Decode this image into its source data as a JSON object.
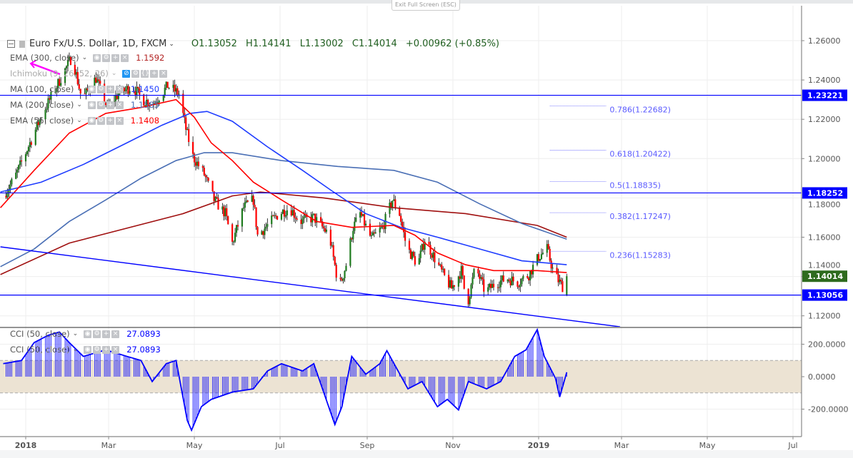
{
  "tooltip": "Exit Full Screen (ESC)",
  "header": {
    "symbol": "Euro Fx/U.S. Dollar, 1D, FXCM",
    "open": "O1.13052",
    "high": "H1.14141",
    "low": "L1.13002",
    "close": "C1.14014",
    "change": "+0.00962 (+0.85%)"
  },
  "indicators": [
    {
      "label": "EMA (300, close)",
      "value": "1.1592",
      "color": "#b22222"
    },
    {
      "label": "Ichimoku (9, 26, 52, 26)",
      "value": "",
      "color": "#999999"
    },
    {
      "label": "MA (100, close)",
      "value": "1.1450",
      "color": "#1e3cff"
    },
    {
      "label": "MA (200, close)",
      "value": "1.1585",
      "color": "#4a6fb5"
    },
    {
      "label": "EMA (55, close)",
      "value": "1.1408",
      "color": "#ff0000"
    }
  ],
  "cci_legend": [
    {
      "label": "CCI (50, close)",
      "value": "27.0893"
    },
    {
      "label": "CCI (50, close)",
      "value": "27.0893"
    }
  ],
  "chart_data": [
    {
      "type": "candlestick",
      "pane": "price",
      "y_ticks": [
        "1.26000",
        "1.24000",
        "1.22000",
        "1.20000",
        "1.18000",
        "1.16000",
        "1.14000",
        "1.12000"
      ],
      "x_ticks": [
        {
          "date": "2018-01-01",
          "label": "2018",
          "bold": true
        },
        {
          "date": "2018-03-01",
          "label": "Mar"
        },
        {
          "date": "2018-05-01",
          "label": "May"
        },
        {
          "date": "2018-07-01",
          "label": "Jul"
        },
        {
          "date": "2018-09-01",
          "label": "Sep"
        },
        {
          "date": "2018-11-01",
          "label": "Nov"
        },
        {
          "date": "2019-01-01",
          "label": "2019",
          "bold": true
        },
        {
          "date": "2019-03-01",
          "label": "Mar"
        },
        {
          "date": "2019-05-01",
          "label": "May"
        },
        {
          "date": "2019-07-01",
          "label": "Jul"
        }
      ],
      "ylim": [
        1.108,
        1.264
      ],
      "colors": {
        "up": "#1e7b1e",
        "down": "#ff0000"
      },
      "last_bar": {
        "open": 1.13052,
        "high": 1.14141,
        "low": 1.13002,
        "close": 1.14014
      },
      "close_path": [
        [
          "2017-12-16",
          1.181
        ],
        [
          "2017-12-24",
          1.19
        ],
        [
          "2018-01-01",
          1.203
        ],
        [
          "2018-01-13",
          1.223
        ],
        [
          "2018-01-26",
          1.241
        ],
        [
          "2018-02-03",
          1.252
        ],
        [
          "2018-02-10",
          1.23
        ],
        [
          "2018-02-20",
          1.241
        ],
        [
          "2018-02-28",
          1.226
        ],
        [
          "2018-03-08",
          1.233
        ],
        [
          "2018-03-18",
          1.237
        ],
        [
          "2018-03-25",
          1.23
        ],
        [
          "2018-04-02",
          1.228
        ],
        [
          "2018-04-12",
          1.237
        ],
        [
          "2018-04-20",
          1.233
        ],
        [
          "2018-04-25",
          1.215
        ],
        [
          "2018-04-30",
          1.201
        ],
        [
          "2018-05-08",
          1.192
        ],
        [
          "2018-05-15",
          1.179
        ],
        [
          "2018-05-23",
          1.172
        ],
        [
          "2018-05-28",
          1.157
        ],
        [
          "2018-06-05",
          1.175
        ],
        [
          "2018-06-12",
          1.179
        ],
        [
          "2018-06-15",
          1.161
        ],
        [
          "2018-06-22",
          1.166
        ],
        [
          "2018-06-30",
          1.172
        ],
        [
          "2018-07-08",
          1.175
        ],
        [
          "2018-07-15",
          1.168
        ],
        [
          "2018-07-25",
          1.17
        ],
        [
          "2018-08-05",
          1.161
        ],
        [
          "2018-08-12",
          1.134
        ],
        [
          "2018-08-17",
          1.146
        ],
        [
          "2018-08-22",
          1.165
        ],
        [
          "2018-08-27",
          1.172
        ],
        [
          "2018-09-04",
          1.159
        ],
        [
          "2018-09-12",
          1.165
        ],
        [
          "2018-09-19",
          1.179
        ],
        [
          "2018-09-24",
          1.172
        ],
        [
          "2018-09-29",
          1.155
        ],
        [
          "2018-10-07",
          1.146
        ],
        [
          "2018-10-12",
          1.159
        ],
        [
          "2018-10-17",
          1.152
        ],
        [
          "2018-10-25",
          1.141
        ],
        [
          "2018-10-31",
          1.134
        ],
        [
          "2018-11-07",
          1.143
        ],
        [
          "2018-11-11",
          1.125
        ],
        [
          "2018-11-17",
          1.145
        ],
        [
          "2018-11-24",
          1.132
        ],
        [
          "2018-12-02",
          1.137
        ],
        [
          "2018-12-10",
          1.139
        ],
        [
          "2018-12-17",
          1.137
        ],
        [
          "2018-12-25",
          1.141
        ],
        [
          "2019-01-01",
          1.15
        ],
        [
          "2019-01-07",
          1.154
        ],
        [
          "2019-01-12",
          1.141
        ],
        [
          "2019-01-19",
          1.134
        ],
        [
          "2019-01-21",
          1.14
        ]
      ],
      "series": [
        {
          "name": "EMA (300, close)",
          "color": "#a01010",
          "points": [
            [
              "2017-12-14",
              1.141
            ],
            [
              "2018-02-01",
              1.157
            ],
            [
              "2018-04-23",
              1.172
            ],
            [
              "2018-05-28",
              1.181
            ],
            [
              "2018-06-17",
              1.183
            ],
            [
              "2018-08-01",
              1.18
            ],
            [
              "2018-09-20",
              1.175
            ],
            [
              "2018-11-10",
              1.172
            ],
            [
              "2018-12-31",
              1.166
            ],
            [
              "2019-01-21",
              1.16
            ]
          ]
        },
        {
          "name": "MA (200, close)",
          "color": "#4a6fb5",
          "points": [
            [
              "2017-12-14",
              1.145
            ],
            [
              "2018-01-07",
              1.154
            ],
            [
              "2018-02-01",
              1.168
            ],
            [
              "2018-02-27",
              1.179
            ],
            [
              "2018-03-24",
              1.19
            ],
            [
              "2018-04-18",
              1.199
            ],
            [
              "2018-05-08",
              1.203
            ],
            [
              "2018-05-28",
              1.203
            ],
            [
              "2018-07-02",
              1.199
            ],
            [
              "2018-08-11",
              1.196
            ],
            [
              "2018-09-20",
              1.194
            ],
            [
              "2018-10-21",
              1.188
            ],
            [
              "2018-11-20",
              1.177
            ],
            [
              "2018-12-20",
              1.167
            ],
            [
              "2019-01-21",
              1.159
            ]
          ]
        },
        {
          "name": "MA (100, close)",
          "color": "#1e3cff",
          "points": [
            [
              "2017-12-14",
              1.183
            ],
            [
              "2018-01-12",
              1.188
            ],
            [
              "2018-02-11",
              1.197
            ],
            [
              "2018-03-14",
              1.208
            ],
            [
              "2018-04-08",
              1.217
            ],
            [
              "2018-04-28",
              1.223
            ],
            [
              "2018-05-10",
              1.224
            ],
            [
              "2018-05-28",
              1.219
            ],
            [
              "2018-06-22",
              1.206
            ],
            [
              "2018-07-17",
              1.194
            ],
            [
              "2018-08-06",
              1.184
            ],
            [
              "2018-08-31",
              1.172
            ],
            [
              "2018-09-25",
              1.165
            ],
            [
              "2018-10-21",
              1.16
            ],
            [
              "2018-11-20",
              1.154
            ],
            [
              "2018-12-20",
              1.148
            ],
            [
              "2019-01-21",
              1.146
            ]
          ]
        },
        {
          "name": "EMA (55, close)",
          "color": "#ff0000",
          "points": [
            [
              "2017-12-14",
              1.175
            ],
            [
              "2018-01-07",
              1.194
            ],
            [
              "2018-02-01",
              1.213
            ],
            [
              "2018-02-27",
              1.223
            ],
            [
              "2018-03-24",
              1.226
            ],
            [
              "2018-04-18",
              1.23
            ],
            [
              "2018-05-01",
              1.221
            ],
            [
              "2018-05-13",
              1.208
            ],
            [
              "2018-05-28",
              1.199
            ],
            [
              "2018-06-12",
              1.188
            ],
            [
              "2018-07-02",
              1.179
            ],
            [
              "2018-07-27",
              1.168
            ],
            [
              "2018-08-21",
              1.165
            ],
            [
              "2018-09-20",
              1.166
            ],
            [
              "2018-10-05",
              1.161
            ],
            [
              "2018-10-21",
              1.152
            ],
            [
              "2018-11-10",
              1.146
            ],
            [
              "2018-11-30",
              1.143
            ],
            [
              "2018-12-20",
              1.143
            ],
            [
              "2018-12-31",
              1.143
            ],
            [
              "2019-01-21",
              1.142
            ]
          ]
        }
      ],
      "horizontal_lines": [
        {
          "price": 1.23221,
          "label": "1.23221",
          "color": "#0000ff"
        },
        {
          "price": 1.18252,
          "label": "1.18252",
          "color": "#0000ff"
        },
        {
          "price": 1.13056,
          "label": "1.13056",
          "color": "#0000ff"
        }
      ],
      "last_price_label": {
        "label": "1.14014",
        "color": "#2e6b1e"
      },
      "trendline": {
        "color": "#0000ff",
        "from": [
          "2017-12-14",
          1.1551
        ],
        "to": [
          "2019-02-28",
          1.1144
        ]
      },
      "fibonacci": {
        "from_date": "2019-01-09",
        "to_date": "2019-02-18",
        "color": "#5a5aff",
        "levels": [
          {
            "price": 1.22682,
            "label": "0.786(1.22682)"
          },
          {
            "price": 1.20422,
            "label": "0.618(1.20422)"
          },
          {
            "price": 1.18835,
            "label": "0.5(1.18835)"
          },
          {
            "price": 1.17247,
            "label": "0.382(1.17247)"
          },
          {
            "price": 1.15283,
            "label": "0.236(1.15283)"
          }
        ]
      },
      "annotation_arrow_color": "#ff00ff"
    },
    {
      "type": "line",
      "pane": "cci",
      "name": "CCI (50, close)",
      "color": "#0000ff",
      "band": {
        "upper": 100,
        "lower": -100,
        "fill": "#ece3d3"
      },
      "y_ticks": [
        {
          "value": 200,
          "label": "200.0000"
        },
        {
          "value": 0,
          "label": "0.0000"
        },
        {
          "value": -200,
          "label": "-200.0000"
        }
      ],
      "ylim": [
        -370,
        300
      ],
      "points": [
        [
          "2017-12-16",
          80
        ],
        [
          "2017-12-29",
          100
        ],
        [
          "2018-01-07",
          210
        ],
        [
          "2018-01-17",
          255
        ],
        [
          "2018-01-25",
          275
        ],
        [
          "2018-02-01",
          210
        ],
        [
          "2018-02-11",
          125
        ],
        [
          "2018-02-27",
          165
        ],
        [
          "2018-03-14",
          125
        ],
        [
          "2018-03-24",
          100
        ],
        [
          "2018-04-01",
          -30
        ],
        [
          "2018-04-11",
          80
        ],
        [
          "2018-04-18",
          100
        ],
        [
          "2018-04-26",
          -270
        ],
        [
          "2018-04-29",
          -330
        ],
        [
          "2018-05-06",
          -185
        ],
        [
          "2018-05-13",
          -140
        ],
        [
          "2018-05-28",
          -95
        ],
        [
          "2018-06-12",
          -75
        ],
        [
          "2018-06-22",
          35
        ],
        [
          "2018-07-02",
          80
        ],
        [
          "2018-07-17",
          35
        ],
        [
          "2018-07-25",
          80
        ],
        [
          "2018-08-01",
          -95
        ],
        [
          "2018-08-09",
          -295
        ],
        [
          "2018-08-14",
          -185
        ],
        [
          "2018-08-21",
          125
        ],
        [
          "2018-08-31",
          15
        ],
        [
          "2018-09-10",
          80
        ],
        [
          "2018-09-15",
          160
        ],
        [
          "2018-09-23",
          35
        ],
        [
          "2018-09-30",
          -75
        ],
        [
          "2018-10-10",
          -30
        ],
        [
          "2018-10-21",
          -185
        ],
        [
          "2018-10-28",
          -140
        ],
        [
          "2018-11-05",
          -205
        ],
        [
          "2018-11-12",
          -30
        ],
        [
          "2018-11-25",
          -75
        ],
        [
          "2018-12-05",
          -30
        ],
        [
          "2018-12-15",
          125
        ],
        [
          "2018-12-23",
          165
        ],
        [
          "2018-12-31",
          290
        ],
        [
          "2019-01-05",
          125
        ],
        [
          "2019-01-13",
          -10
        ],
        [
          "2019-01-16",
          -125
        ],
        [
          "2019-01-21",
          27.0893
        ]
      ]
    }
  ]
}
